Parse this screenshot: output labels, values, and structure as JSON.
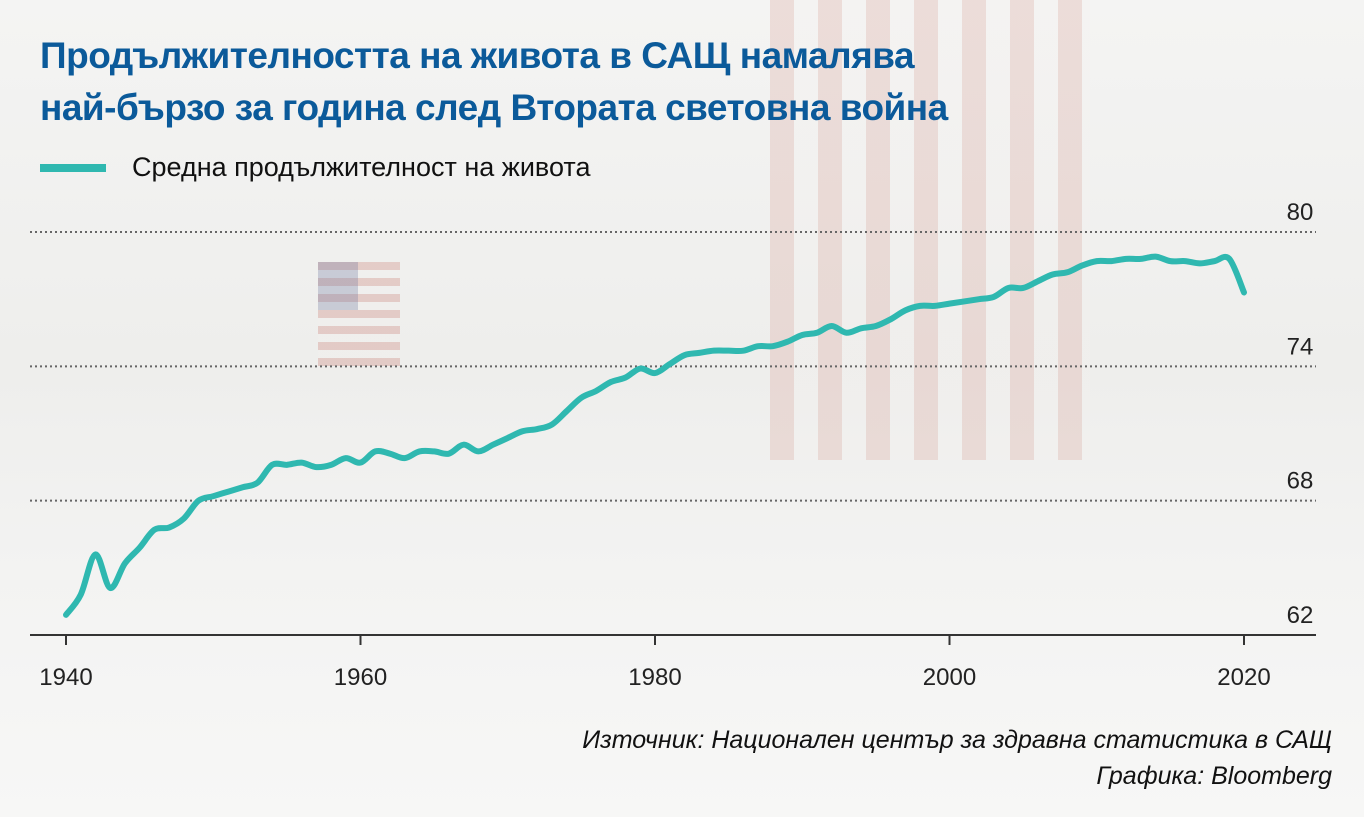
{
  "title_line1": "Продължителността на живота в САЩ намалява",
  "title_line2": "най-бързо за година след Втората световна война",
  "legend": {
    "label": "Средна продължителност на живота",
    "color": "#2fb8b0"
  },
  "source": "Източник: Национален център за здравна статистика в САЩ",
  "credit": "Графика: Bloomberg",
  "chart_data": {
    "type": "line",
    "title": "Продължителността на живота в САЩ намалява най-бързо за година след Втората световна война",
    "xlabel": "",
    "ylabel": "",
    "xlim": [
      1940,
      2020
    ],
    "ylim": [
      62,
      80
    ],
    "xticks": [
      "1940",
      "1960",
      "1980",
      "2000",
      "2020"
    ],
    "yticks": [
      "62",
      "68",
      "74",
      "80"
    ],
    "grid": "horizontal dotted",
    "legend_position": "top-left",
    "series": [
      {
        "name": "Средна продължителност на живота",
        "color": "#2fb8b0",
        "x": [
          1940,
          1941,
          1942,
          1943,
          1944,
          1945,
          1946,
          1947,
          1948,
          1949,
          1950,
          1951,
          1952,
          1953,
          1954,
          1955,
          1956,
          1957,
          1958,
          1959,
          1960,
          1961,
          1962,
          1963,
          1964,
          1965,
          1966,
          1967,
          1968,
          1969,
          1970,
          1971,
          1972,
          1973,
          1974,
          1975,
          1976,
          1977,
          1978,
          1979,
          1980,
          1981,
          1982,
          1983,
          1984,
          1985,
          1986,
          1987,
          1988,
          1989,
          1990,
          1991,
          1992,
          1993,
          1994,
          1995,
          1996,
          1997,
          1998,
          1999,
          2000,
          2001,
          2002,
          2003,
          2004,
          2005,
          2006,
          2007,
          2008,
          2009,
          2010,
          2011,
          2012,
          2013,
          2014,
          2015,
          2016,
          2017,
          2018,
          2019,
          2020
        ],
        "y": [
          62.9,
          63.8,
          65.6,
          64.1,
          65.2,
          65.9,
          66.7,
          66.8,
          67.2,
          68.0,
          68.2,
          68.4,
          68.6,
          68.8,
          69.6,
          69.6,
          69.7,
          69.5,
          69.6,
          69.9,
          69.7,
          70.2,
          70.1,
          69.9,
          70.2,
          70.2,
          70.1,
          70.5,
          70.2,
          70.5,
          70.8,
          71.1,
          71.2,
          71.4,
          72.0,
          72.6,
          72.9,
          73.3,
          73.5,
          73.9,
          73.7,
          74.1,
          74.5,
          74.6,
          74.7,
          74.7,
          74.7,
          74.9,
          74.9,
          75.1,
          75.4,
          75.5,
          75.8,
          75.5,
          75.7,
          75.8,
          76.1,
          76.5,
          76.7,
          76.7,
          76.8,
          76.9,
          77.0,
          77.1,
          77.5,
          77.5,
          77.8,
          78.1,
          78.2,
          78.5,
          78.7,
          78.7,
          78.8,
          78.8,
          78.9,
          78.7,
          78.7,
          78.6,
          78.7,
          78.8,
          77.3
        ]
      }
    ]
  }
}
